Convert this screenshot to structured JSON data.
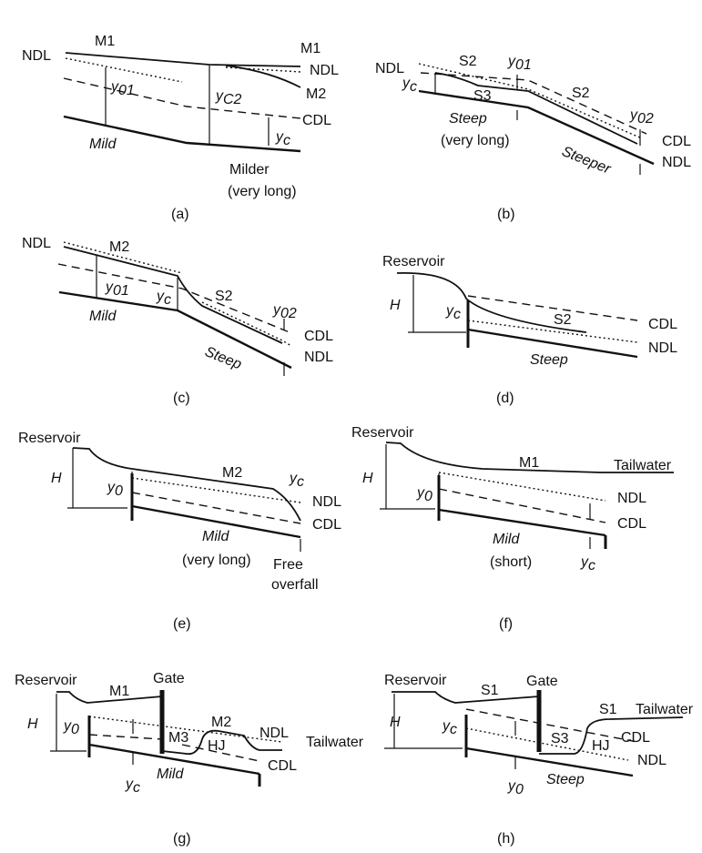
{
  "labels": {
    "NDL": "NDL",
    "CDL": "CDL",
    "M1": "M1",
    "M2": "M2",
    "M3": "M3",
    "S1": "S1",
    "S2": "S2",
    "S3": "S3",
    "HJ": "HJ",
    "y": "y",
    "sub_01": "01",
    "sub_02": "02",
    "sub_0": "0",
    "sub_c": "c",
    "sub_c2": "C2",
    "H": "H",
    "Reservoir": "Reservoir",
    "Gate": "Gate",
    "Tailwater": "Tailwater",
    "Mild": "Mild",
    "Milder": "Milder",
    "Steep": "Steep",
    "Steeper": "Steeper",
    "very_long": "(very long)",
    "very_long_b": "(very long)",
    "short": "(short)",
    "Free": "Free",
    "overfall": "overfall"
  },
  "panels": [
    "(a)",
    "(b)",
    "(c)",
    "(d)",
    "(e)",
    "(f)",
    "(g)",
    "(h)"
  ]
}
